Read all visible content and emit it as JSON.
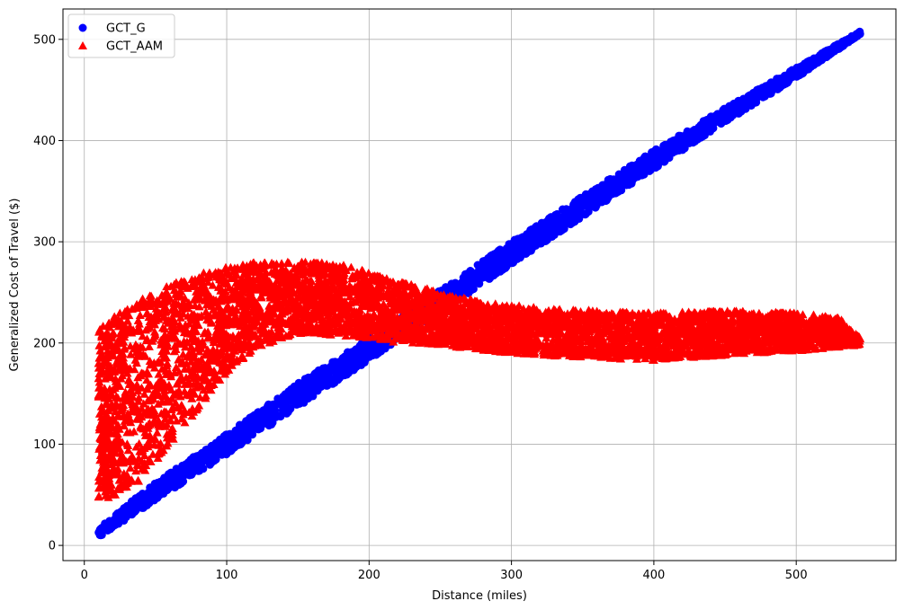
{
  "chart_data": {
    "type": "scatter",
    "title": "",
    "xlabel": "Distance (miles)",
    "ylabel": "Generalized Cost of Travel ($)",
    "xlim": [
      -15,
      570
    ],
    "ylim": [
      -15,
      530
    ],
    "xticks": [
      0,
      100,
      200,
      300,
      400,
      500
    ],
    "yticks": [
      0,
      100,
      200,
      300,
      400,
      500
    ],
    "grid": true,
    "legend_position": "upper-left",
    "series": [
      {
        "name": "GCT_G",
        "marker": "circle",
        "color": "#0000ff",
        "description": "dense band from (10,12) rising linearly to (545,507)",
        "band": [
          {
            "x": 10,
            "y_low": 8,
            "y_high": 18
          },
          {
            "x": 50,
            "y_low": 45,
            "y_high": 62
          },
          {
            "x": 100,
            "y_low": 90,
            "y_high": 110
          },
          {
            "x": 150,
            "y_low": 137,
            "y_high": 160
          },
          {
            "x": 200,
            "y_low": 183,
            "y_high": 205
          },
          {
            "x": 250,
            "y_low": 230,
            "y_high": 252
          },
          {
            "x": 300,
            "y_low": 278,
            "y_high": 300
          },
          {
            "x": 350,
            "y_low": 325,
            "y_high": 345
          },
          {
            "x": 400,
            "y_low": 372,
            "y_high": 390
          },
          {
            "x": 450,
            "y_low": 418,
            "y_high": 432
          },
          {
            "x": 500,
            "y_low": 462,
            "y_high": 472
          },
          {
            "x": 545,
            "y_low": 505,
            "y_high": 508
          }
        ]
      },
      {
        "name": "GCT_AAM",
        "marker": "triangle",
        "color": "#ff0000",
        "description": "wide band from (10,45-215) widening to peak near x=160 then narrowing around y=200 to x=545",
        "band": [
          {
            "x": 10,
            "y_low": 44,
            "y_high": 215
          },
          {
            "x": 20,
            "y_low": 48,
            "y_high": 225
          },
          {
            "x": 40,
            "y_low": 65,
            "y_high": 245
          },
          {
            "x": 60,
            "y_low": 100,
            "y_high": 258
          },
          {
            "x": 80,
            "y_low": 135,
            "y_high": 268
          },
          {
            "x": 100,
            "y_low": 170,
            "y_high": 275
          },
          {
            "x": 120,
            "y_low": 195,
            "y_high": 280
          },
          {
            "x": 140,
            "y_low": 205,
            "y_high": 280
          },
          {
            "x": 160,
            "y_low": 210,
            "y_high": 280
          },
          {
            "x": 180,
            "y_low": 207,
            "y_high": 278
          },
          {
            "x": 200,
            "y_low": 205,
            "y_high": 270
          },
          {
            "x": 220,
            "y_low": 200,
            "y_high": 262
          },
          {
            "x": 250,
            "y_low": 198,
            "y_high": 250
          },
          {
            "x": 280,
            "y_low": 192,
            "y_high": 240
          },
          {
            "x": 320,
            "y_low": 188,
            "y_high": 235
          },
          {
            "x": 360,
            "y_low": 185,
            "y_high": 232
          },
          {
            "x": 400,
            "y_low": 183,
            "y_high": 230
          },
          {
            "x": 450,
            "y_low": 188,
            "y_high": 232
          },
          {
            "x": 500,
            "y_low": 192,
            "y_high": 230
          },
          {
            "x": 530,
            "y_low": 196,
            "y_high": 225
          },
          {
            "x": 545,
            "y_low": 198,
            "y_high": 205
          }
        ]
      }
    ]
  }
}
